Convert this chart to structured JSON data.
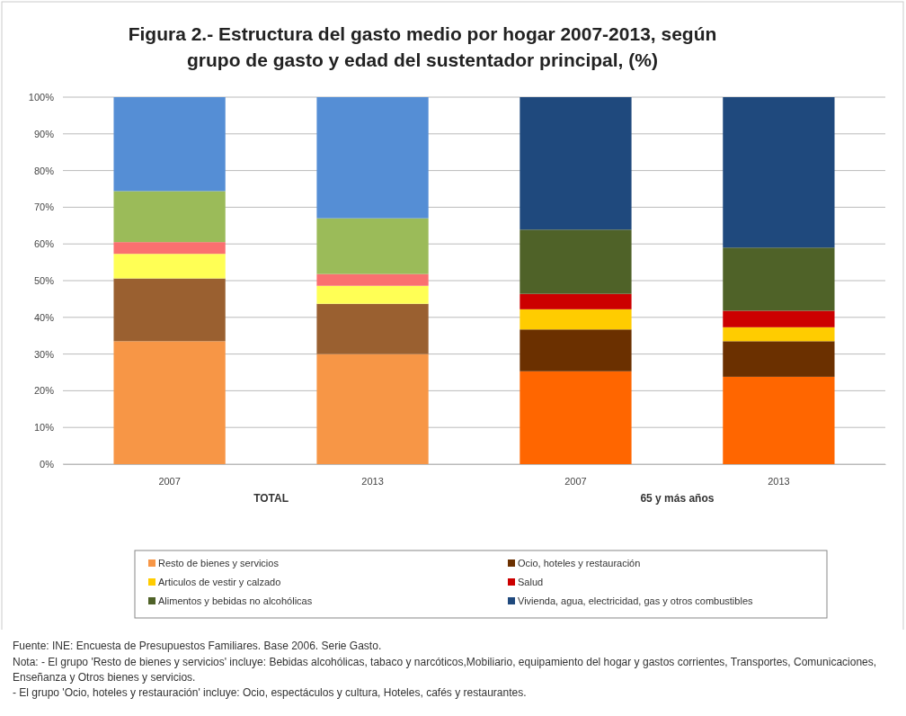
{
  "chart_data": {
    "type": "bar",
    "stacked": true,
    "title": "Figura 2.- Estructura del gasto medio por hogar 2007-2013,   según grupo de gasto y edad del sustentador principal, (%)",
    "categories": [
      "2007",
      "2013",
      "2007",
      "2013"
    ],
    "series": [
      {
        "name": "Resto de bienes y servicios",
        "color": "#f79646",
        "colors": [
          "#f79646",
          "#f79646",
          "#ff6600",
          "#ff6600"
        ],
        "values": [
          33.5,
          30,
          25.3,
          23.8
        ]
      },
      {
        "name": "Ocio, hoteles y restauración",
        "color": "#6b3000",
        "colors": [
          "#9a6030",
          "#9a6030",
          "#6b3000",
          "#6b3000"
        ],
        "values": [
          17.1,
          13.7,
          11.4,
          9.7
        ]
      },
      {
        "name": "Articulos de vestir  y calzado",
        "color": "#ffcc00",
        "colors": [
          "#ffff55",
          "#ffff55",
          "#ffcc00",
          "#ffcc00"
        ],
        "values": [
          6.7,
          4.9,
          5.5,
          3.8
        ]
      },
      {
        "name": "Salud",
        "color": "#cc0000",
        "colors": [
          "#fa7070",
          "#fa7070",
          "#cc0000",
          "#cc0000"
        ],
        "values": [
          3.2,
          3.2,
          4.2,
          4.5
        ]
      },
      {
        "name": "Alimentos y bebidas no alcohólicas",
        "color": "#4f6228",
        "colors": [
          "#9bbb59",
          "#9bbb59",
          "#4f6228",
          "#4f6228"
        ],
        "values": [
          13.9,
          15.2,
          17.5,
          17.2
        ]
      },
      {
        "name": "Vivienda, agua, electricidad, gas y otros combustibles",
        "color": "#1f497d",
        "colors": [
          "#558ed5",
          "#558ed5",
          "#1f497d",
          "#1f497d"
        ],
        "values": [
          25.6,
          33,
          36.1,
          41
        ]
      }
    ],
    "ylim": [
      0,
      100
    ],
    "yticks": [
      {
        "value": 0,
        "label": "0%"
      },
      {
        "value": 10,
        "label": "10%"
      },
      {
        "value": 20,
        "label": "20%"
      },
      {
        "value": 30,
        "label": "30%"
      },
      {
        "value": 40,
        "label": "40%"
      },
      {
        "value": 50,
        "label": "50%"
      },
      {
        "value": 60,
        "label": "60%"
      },
      {
        "value": 70,
        "label": "70%"
      },
      {
        "value": 80,
        "label": "80%"
      },
      {
        "value": 90,
        "label": "90%"
      },
      {
        "value": 100,
        "label": "100%"
      }
    ],
    "grid": "y",
    "legend": "bottom",
    "annotations": [
      "TOTAL",
      "65 y más años",
      "Fuente: INE: Encuesta de Presupuestos Familiares. Base 2006. Serie Gasto.",
      "Nota:  - El grupo 'Resto de bienes y servicios' incluye: Bebidas alcohólicas,  tabaco y narcóticos,Mobiliario, equipamiento del hogar y gastos corrientes, Transportes, Comunicaciones, Enseñanza y Otros bienes y servicios.",
      "- El grupo 'Ocio, hoteles y restauración' incluye: Ocio, espectáculos y cultura, Hoteles, cafés y restaurantes."
    ]
  }
}
